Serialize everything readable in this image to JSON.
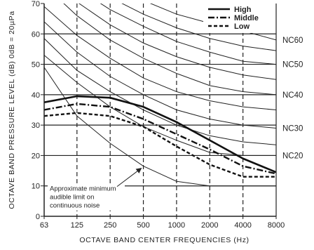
{
  "chart_data": {
    "type": "line",
    "title": "",
    "xlabel": "OCTAVE BAND CENTER FREQUENCIES (Hz)",
    "ylabel": "OCTAVE BAND PRESSURE LEVEL (dB) 0dB = 20µPa",
    "x_scale": "log2",
    "x_ticks": [
      "63",
      "125",
      "250",
      "500",
      "1000",
      "2000",
      "4000",
      "8000"
    ],
    "y_ticks": [
      "0",
      "10",
      "20",
      "30",
      "40",
      "50",
      "60",
      "70"
    ],
    "xlim": [
      63,
      8000
    ],
    "ylim": [
      0,
      70
    ],
    "grid": {
      "horizontal": true,
      "vertical_dashed": true
    },
    "legend": "top-right",
    "series": [
      {
        "name": "High",
        "style": "solid-bold",
        "x": [
          63,
          125,
          250,
          500,
          1000,
          2000,
          4000,
          8000
        ],
        "values": [
          37.5,
          39.5,
          39,
          36,
          31,
          25,
          19,
          14.5
        ]
      },
      {
        "name": "Middle",
        "style": "dash-dot-bold",
        "x": [
          63,
          125,
          250,
          500,
          1000,
          2000,
          4000,
          8000
        ],
        "values": [
          35,
          37,
          36,
          32,
          27,
          22,
          16.5,
          14
        ]
      },
      {
        "name": "Low",
        "style": "dashed-bold",
        "x": [
          63,
          125,
          250,
          500,
          1000,
          2000,
          4000,
          8000
        ],
        "values": [
          33,
          34,
          33,
          29.5,
          23,
          17,
          13,
          13
        ]
      }
    ],
    "nc_curves": [
      {
        "label": "NC60",
        "values": [
          90,
          83,
          77,
          71,
          66.5,
          63.5,
          61,
          58
        ]
      },
      {
        "label": "NC50",
        "values": [
          86,
          75,
          68,
          62.5,
          57.5,
          54,
          51,
          50
        ]
      },
      {
        "label": "NC40",
        "values": [
          76,
          66,
          58,
          52,
          47,
          43,
          41,
          40
        ]
      },
      {
        "label": "NC30",
        "values": [
          64,
          54,
          46,
          40,
          35,
          32,
          30,
          29
        ]
      },
      {
        "label": "NC20",
        "values": [
          53,
          44,
          36,
          29.5,
          25,
          21,
          20,
          20
        ]
      },
      {
        "label": "",
        "values": [
          58.5,
          48,
          41,
          35,
          30,
          26.5,
          24.5,
          23.5
        ]
      },
      {
        "label": "",
        "values": [
          69,
          59.5,
          52,
          45.5,
          41,
          38,
          36,
          35
        ]
      },
      {
        "label": "",
        "values": [
          80,
          70.5,
          63,
          57,
          52.5,
          49,
          46.5,
          45
        ]
      },
      {
        "label": "",
        "values": [
          90,
          79,
          72,
          66.5,
          62,
          58.5,
          56,
          54.5
        ]
      }
    ],
    "audible_limit": {
      "x": [
        63,
        125,
        250,
        500,
        1000,
        2000,
        4000,
        8000
      ],
      "values": [
        49,
        33,
        24,
        16.5,
        11.5,
        10,
        10,
        10
      ],
      "annotation": "Approximate minimum\naudible limit on\ncontinuous noise",
      "arrow_target": {
        "x": 500,
        "y": 16.5
      }
    }
  }
}
